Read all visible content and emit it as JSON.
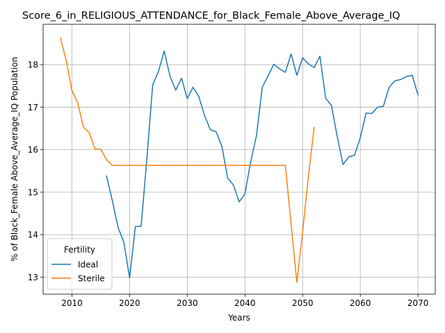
{
  "chart_data": {
    "type": "line",
    "title": "Score_6_in_RELIGIOUS_ATTENDANCE_for_Black_Female_Above_Average_IQ",
    "xlabel": "Years",
    "ylabel": "% of Black_Female Above_Average_IQ Population",
    "xlim": [
      2005,
      2073
    ],
    "ylim": [
      12.6,
      18.95
    ],
    "xticks": [
      2010,
      2020,
      2030,
      2040,
      2050,
      2060,
      2070
    ],
    "yticks": [
      13,
      14,
      15,
      16,
      17,
      18
    ],
    "grid": true,
    "legend": {
      "title": "Fertility",
      "placement": "lower-left"
    },
    "series": [
      {
        "name": "Ideal",
        "color": "#1f77b4",
        "x": [
          2016,
          2017,
          2018,
          2019,
          2020,
          2021,
          2022,
          2023,
          2024,
          2025,
          2026,
          2027,
          2028,
          2029,
          2030,
          2031,
          2032,
          2033,
          2034,
          2035,
          2036,
          2037,
          2038,
          2039,
          2040,
          2041,
          2042,
          2043,
          2044,
          2045,
          2046,
          2047,
          2048,
          2049,
          2050,
          2051,
          2052,
          2053,
          2054,
          2055,
          2056,
          2057,
          2058,
          2059,
          2060,
          2061,
          2062,
          2063,
          2064,
          2065,
          2066,
          2067,
          2068,
          2069,
          2070
        ],
        "y": [
          15.38,
          14.8,
          14.17,
          13.82,
          12.98,
          14.19,
          14.2,
          15.8,
          17.52,
          17.84,
          18.32,
          17.73,
          17.4,
          17.68,
          17.2,
          17.47,
          17.25,
          16.8,
          16.47,
          16.42,
          16.08,
          15.33,
          15.17,
          14.77,
          14.96,
          15.72,
          16.33,
          17.47,
          17.73,
          18.01,
          17.9,
          17.82,
          18.25,
          17.75,
          18.16,
          18.02,
          17.93,
          18.2,
          17.21,
          17.04,
          16.31,
          15.65,
          15.83,
          15.87,
          16.28,
          16.86,
          16.85,
          17.0,
          17.02,
          17.47,
          17.62,
          17.65,
          17.72,
          17.75,
          17.29
        ]
      },
      {
        "name": "Sterile",
        "color": "#ff7f0e",
        "x": [
          2008,
          2009,
          2010,
          2011,
          2012,
          2013,
          2014,
          2015,
          2016,
          2017,
          2018,
          2019,
          2020,
          2021,
          2022,
          2023,
          2024,
          2025,
          2026,
          2027,
          2028,
          2029,
          2030,
          2031,
          2032,
          2033,
          2034,
          2035,
          2036,
          2037,
          2038,
          2039,
          2040,
          2041,
          2042,
          2043,
          2044,
          2045,
          2046,
          2047,
          2048,
          2049,
          2050,
          2051,
          2052
        ],
        "y": [
          18.63,
          18.1,
          17.39,
          17.1,
          16.53,
          16.4,
          16.01,
          16.01,
          15.76,
          15.63,
          15.63,
          15.63,
          15.63,
          15.63,
          15.63,
          15.63,
          15.63,
          15.63,
          15.63,
          15.63,
          15.63,
          15.63,
          15.63,
          15.63,
          15.63,
          15.63,
          15.63,
          15.63,
          15.63,
          15.63,
          15.63,
          15.63,
          15.63,
          15.63,
          15.63,
          15.63,
          15.63,
          15.63,
          15.63,
          15.63,
          14.25,
          12.88,
          14.07,
          15.37,
          16.52
        ]
      }
    ]
  }
}
